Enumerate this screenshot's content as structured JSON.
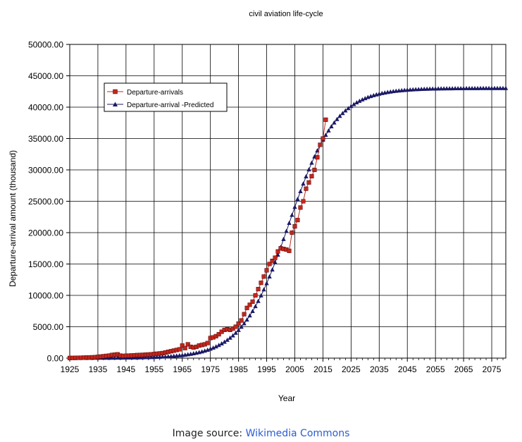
{
  "chart_data": {
    "type": "line",
    "title": "civil aviation  life-cycle",
    "xlabel": "Year",
    "ylabel": "Departure-arrival amount (thousand)",
    "xlim": [
      1925,
      2080
    ],
    "ylim": [
      0,
      50000
    ],
    "x_ticks": [
      "1925",
      "1935",
      "1945",
      "1955",
      "1965",
      "1975",
      "1985",
      "1995",
      "2005",
      "2015",
      "2025",
      "2035",
      "2045",
      "2055",
      "2065",
      "2075"
    ],
    "y_ticks": [
      "0.00",
      "5000.00",
      "10000.00",
      "15000.00",
      "20000.00",
      "25000.00",
      "30000.00",
      "35000.00",
      "40000.00",
      "45000.00",
      "50000.00"
    ],
    "grid": true,
    "legend_position": "upper-left",
    "series": [
      {
        "name": "Departure-arrivals",
        "color": "#c0281e",
        "marker": "square",
        "x": [
          1925,
          1926,
          1927,
          1928,
          1929,
          1930,
          1931,
          1932,
          1933,
          1934,
          1935,
          1936,
          1937,
          1938,
          1939,
          1940,
          1941,
          1942,
          1943,
          1944,
          1945,
          1946,
          1947,
          1948,
          1949,
          1950,
          1951,
          1952,
          1953,
          1954,
          1955,
          1956,
          1957,
          1958,
          1959,
          1960,
          1961,
          1962,
          1963,
          1964,
          1965,
          1966,
          1967,
          1968,
          1969,
          1970,
          1971,
          1972,
          1973,
          1974,
          1975,
          1976,
          1977,
          1978,
          1979,
          1980,
          1981,
          1982,
          1983,
          1984,
          1985,
          1986,
          1987,
          1988,
          1989,
          1990,
          1991,
          1992,
          1993,
          1994,
          1995,
          1996,
          1997,
          1998,
          1999,
          2000,
          2001,
          2002,
          2003,
          2004,
          2005,
          2006,
          2007,
          2008,
          2009,
          2010,
          2011,
          2012,
          2013,
          2014,
          2015,
          2016
        ],
        "y": [
          20,
          30,
          40,
          50,
          60,
          80,
          100,
          110,
          130,
          150,
          200,
          250,
          300,
          350,
          400,
          500,
          550,
          600,
          400,
          350,
          380,
          400,
          420,
          450,
          480,
          500,
          520,
          550,
          580,
          600,
          650,
          700,
          750,
          800,
          900,
          1000,
          1100,
          1200,
          1300,
          1400,
          2000,
          1600,
          2200,
          1800,
          1700,
          1800,
          2000,
          2100,
          2200,
          2400,
          3200,
          3300,
          3500,
          3800,
          4200,
          4500,
          4600,
          4500,
          4700,
          5000,
          5500,
          6000,
          7000,
          8000,
          8500,
          9000,
          10000,
          11000,
          12000,
          13000,
          14000,
          15000,
          15500,
          16000,
          17000,
          17500,
          17400,
          17300,
          17100,
          20000,
          21000,
          22000,
          24000,
          25000,
          27000,
          28000,
          29000,
          30000,
          32000,
          34000,
          35000,
          38000
        ]
      },
      {
        "name": "Departure-arrival -Predicted",
        "color": "#1a1a66",
        "marker": "triangle",
        "logistic": {
          "K": 43000,
          "x0": 2003,
          "r": 0.12,
          "x_start": 1925,
          "x_end": 2080,
          "step": 1
        }
      }
    ]
  },
  "credit": {
    "prefix": "Image source: ",
    "link_text": "Wikimedia Commons"
  }
}
